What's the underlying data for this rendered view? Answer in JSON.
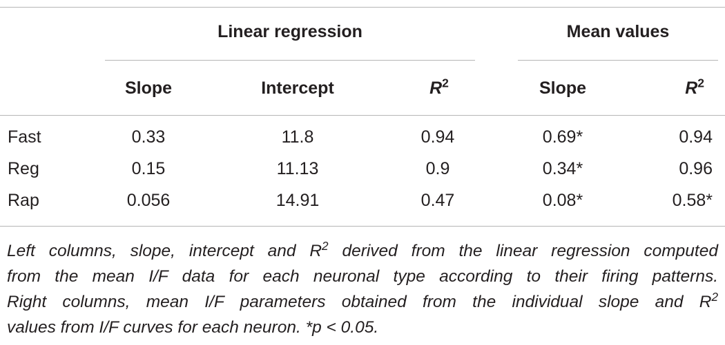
{
  "table": {
    "groups": [
      "Linear regression",
      "Mean values"
    ],
    "columns": [
      {
        "text": "Slope"
      },
      {
        "text": "Intercept"
      },
      {
        "text": "R",
        "sup": "2"
      },
      {
        "text": "Slope"
      },
      {
        "text": "R",
        "sup": "2"
      }
    ],
    "rows": [
      [
        "Fast",
        "0.33",
        "11.8",
        "0.94",
        "0.69*",
        "0.94"
      ],
      [
        "Reg",
        "0.15",
        "11.13",
        "0.9",
        "0.34*",
        "0.96"
      ],
      [
        "Rap",
        "0.056",
        "14.91",
        "0.47",
        "0.08*",
        "0.58*"
      ]
    ]
  },
  "caption": [
    [
      {
        "text": "Left columns, slope, intercept and R"
      },
      {
        "sup": "2"
      },
      {
        "text": " derived from the linear regression computed"
      }
    ],
    [
      {
        "text": "from the mean I/F data for each neuronal type according to their firing patterns."
      }
    ],
    [
      {
        "text": "Right columns, mean I/F parameters obtained from the individual slope and R"
      },
      {
        "sup": "2"
      }
    ],
    [
      {
        "text": "values from I/F curves for each neuron. *p < 0.05."
      }
    ]
  ]
}
